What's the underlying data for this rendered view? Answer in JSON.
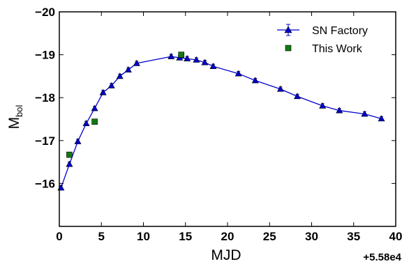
{
  "chart_data": {
    "type": "scatter",
    "xlabel": "MJD",
    "ylabel_main": "M",
    "ylabel_sub": "bol",
    "x_offset_label": "+5.58e4",
    "xlim": [
      0,
      40
    ],
    "ylim": [
      -15,
      -20
    ],
    "y_inverted": true,
    "xticks": [
      0,
      5,
      10,
      15,
      20,
      25,
      30,
      35,
      40
    ],
    "yticks": [
      -16,
      -17,
      -18,
      -19,
      -20
    ],
    "xtick_labels": [
      "0",
      "5",
      "10",
      "15",
      "20",
      "25",
      "30",
      "35",
      "40"
    ],
    "ytick_labels": [
      "−16",
      "−17",
      "−18",
      "−19",
      "−20"
    ],
    "legend_position": "top-right",
    "series": [
      {
        "name": "SN Factory",
        "style": "line-triangle-errorbar",
        "color": "#0000cc",
        "x": [
          0.2,
          1.2,
          2.2,
          3.2,
          4.2,
          5.2,
          6.2,
          7.2,
          8.2,
          9.2,
          13.3,
          14.3,
          15.2,
          16.3,
          17.3,
          18.3,
          21.3,
          23.3,
          26.3,
          28.3,
          31.3,
          33.3,
          36.3,
          38.3
        ],
        "y": [
          -15.9,
          -16.45,
          -16.98,
          -17.4,
          -17.75,
          -18.12,
          -18.28,
          -18.5,
          -18.65,
          -18.8,
          -18.96,
          -18.93,
          -18.91,
          -18.88,
          -18.82,
          -18.73,
          -18.56,
          -18.4,
          -18.2,
          -18.03,
          -17.81,
          -17.7,
          -17.62,
          -17.51
        ],
        "yerr": [
          0.05,
          0.05,
          0.05,
          0.05,
          0.05,
          0.05,
          0.05,
          0.05,
          0.05,
          0.05,
          0.05,
          0.05,
          0.05,
          0.05,
          0.05,
          0.05,
          0.05,
          0.05,
          0.05,
          0.05,
          0.05,
          0.05,
          0.05,
          0.05
        ]
      },
      {
        "name": "This Work",
        "style": "square",
        "color": "#117a11",
        "x": [
          1.2,
          4.2,
          14.5
        ],
        "y": [
          -16.67,
          -17.44,
          -19.0
        ]
      }
    ]
  }
}
